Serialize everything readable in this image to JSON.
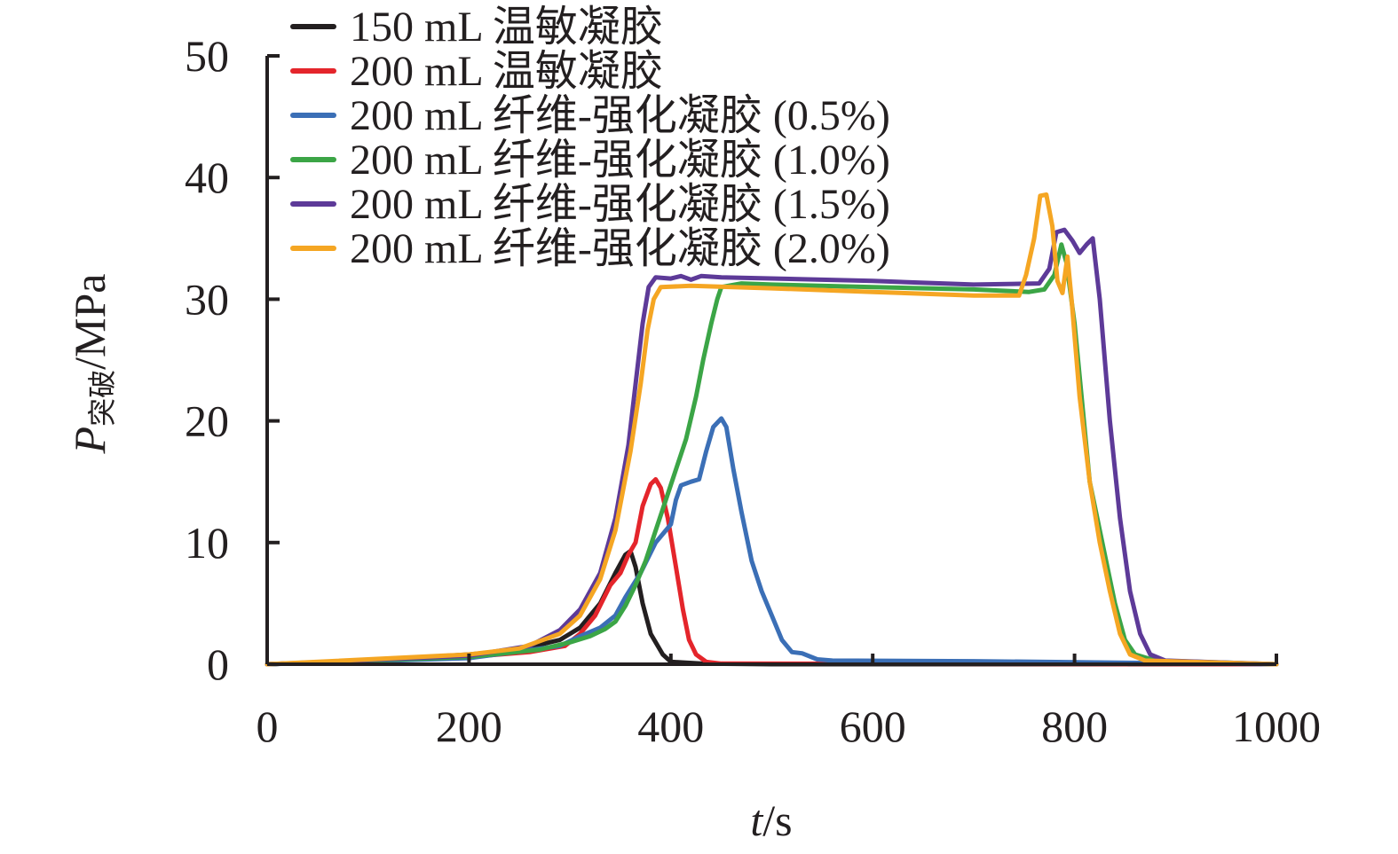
{
  "chart_data": {
    "type": "line",
    "xlabel": {
      "symbol": "t",
      "unit": "/s"
    },
    "ylabel": {
      "symbol": "P",
      "subscript": "突破",
      "unit": "/MPa"
    },
    "xlim": [
      0,
      1000
    ],
    "ylim": [
      0,
      50
    ],
    "x_ticks": [
      0,
      200,
      400,
      600,
      800,
      1000
    ],
    "y_ticks": [
      0,
      10,
      20,
      30,
      40,
      50
    ],
    "grid": false,
    "legend_position": "top-left",
    "series": [
      {
        "name": "150 mL 温敏凝胶",
        "color": "#231f20",
        "points": [
          [
            0,
            0
          ],
          [
            100,
            0.3
          ],
          [
            200,
            0.8
          ],
          [
            250,
            1.2
          ],
          [
            290,
            2.0
          ],
          [
            310,
            3.0
          ],
          [
            330,
            5.0
          ],
          [
            345,
            7.5
          ],
          [
            355,
            9.0
          ],
          [
            360,
            9.3
          ],
          [
            365,
            8.0
          ],
          [
            372,
            5.0
          ],
          [
            380,
            2.5
          ],
          [
            392,
            0.8
          ],
          [
            400,
            0.2
          ],
          [
            430,
            0.05
          ],
          [
            500,
            0
          ],
          [
            1000,
            0
          ]
        ]
      },
      {
        "name": "200 mL 温敏凝胶",
        "color": "#e4252b",
        "points": [
          [
            0,
            0
          ],
          [
            100,
            0.3
          ],
          [
            200,
            0.6
          ],
          [
            260,
            1.0
          ],
          [
            295,
            1.5
          ],
          [
            310,
            2.5
          ],
          [
            325,
            4.0
          ],
          [
            340,
            6.5
          ],
          [
            350,
            7.5
          ],
          [
            358,
            9.0
          ],
          [
            365,
            10.0
          ],
          [
            372,
            13.0
          ],
          [
            380,
            14.8
          ],
          [
            385,
            15.2
          ],
          [
            390,
            14.5
          ],
          [
            397,
            12.0
          ],
          [
            405,
            8.0
          ],
          [
            412,
            4.5
          ],
          [
            418,
            2.0
          ],
          [
            425,
            0.8
          ],
          [
            435,
            0.2
          ],
          [
            450,
            0.05
          ],
          [
            1000,
            0
          ]
        ]
      },
      {
        "name": "200 mL 纤维-强化凝胶 (0.5%)",
        "color": "#3b6fb6",
        "points": [
          [
            0,
            0
          ],
          [
            200,
            0.5
          ],
          [
            290,
            1.5
          ],
          [
            310,
            2.3
          ],
          [
            330,
            3.0
          ],
          [
            345,
            4.0
          ],
          [
            355,
            5.5
          ],
          [
            370,
            7.5
          ],
          [
            385,
            10.0
          ],
          [
            395,
            11.0
          ],
          [
            400,
            11.5
          ],
          [
            405,
            13.5
          ],
          [
            410,
            14.7
          ],
          [
            420,
            15.0
          ],
          [
            428,
            15.2
          ],
          [
            435,
            17.5
          ],
          [
            442,
            19.5
          ],
          [
            450,
            20.2
          ],
          [
            455,
            19.5
          ],
          [
            462,
            16.0
          ],
          [
            470,
            12.5
          ],
          [
            480,
            8.5
          ],
          [
            490,
            6.0
          ],
          [
            500,
            4.0
          ],
          [
            510,
            2.0
          ],
          [
            520,
            1.0
          ],
          [
            530,
            0.9
          ],
          [
            545,
            0.4
          ],
          [
            560,
            0.3
          ],
          [
            700,
            0.25
          ],
          [
            1000,
            0
          ]
        ]
      },
      {
        "name": "200 mL 纤维-强化凝胶 (1.0%)",
        "color": "#3ba546",
        "points": [
          [
            0,
            0
          ],
          [
            200,
            0.6
          ],
          [
            270,
            1.2
          ],
          [
            300,
            1.8
          ],
          [
            320,
            2.3
          ],
          [
            335,
            2.9
          ],
          [
            345,
            3.5
          ],
          [
            355,
            4.8
          ],
          [
            365,
            6.5
          ],
          [
            375,
            8.5
          ],
          [
            385,
            11.0
          ],
          [
            395,
            13.5
          ],
          [
            405,
            16.0
          ],
          [
            415,
            18.5
          ],
          [
            425,
            22.0
          ],
          [
            432,
            25.0
          ],
          [
            440,
            28.0
          ],
          [
            446,
            30.0
          ],
          [
            450,
            31.0
          ],
          [
            470,
            31.3
          ],
          [
            500,
            31.2
          ],
          [
            600,
            31.0
          ],
          [
            700,
            30.8
          ],
          [
            755,
            30.6
          ],
          [
            770,
            30.8
          ],
          [
            780,
            32.0
          ],
          [
            787,
            34.5
          ],
          [
            792,
            33.0
          ],
          [
            800,
            28.0
          ],
          [
            815,
            15.0
          ],
          [
            830,
            9.0
          ],
          [
            840,
            5.0
          ],
          [
            850,
            2.0
          ],
          [
            860,
            0.8
          ],
          [
            880,
            0.3
          ],
          [
            1000,
            0
          ]
        ]
      },
      {
        "name": "200 mL 纤维-强化凝胶 (1.5%)",
        "color": "#5d3a98",
        "points": [
          [
            0,
            0
          ],
          [
            200,
            0.7
          ],
          [
            260,
            1.5
          ],
          [
            290,
            2.8
          ],
          [
            310,
            4.5
          ],
          [
            330,
            7.5
          ],
          [
            345,
            12.0
          ],
          [
            358,
            18.0
          ],
          [
            365,
            23.0
          ],
          [
            372,
            28.0
          ],
          [
            378,
            31.0
          ],
          [
            385,
            31.8
          ],
          [
            400,
            31.7
          ],
          [
            410,
            31.9
          ],
          [
            420,
            31.6
          ],
          [
            430,
            31.9
          ],
          [
            450,
            31.8
          ],
          [
            600,
            31.5
          ],
          [
            700,
            31.2
          ],
          [
            765,
            31.3
          ],
          [
            775,
            32.5
          ],
          [
            782,
            35.5
          ],
          [
            790,
            35.7
          ],
          [
            798,
            34.8
          ],
          [
            805,
            33.8
          ],
          [
            812,
            34.5
          ],
          [
            818,
            35.0
          ],
          [
            825,
            30.0
          ],
          [
            835,
            20.0
          ],
          [
            845,
            12.0
          ],
          [
            855,
            6.0
          ],
          [
            865,
            2.5
          ],
          [
            875,
            0.8
          ],
          [
            890,
            0.3
          ],
          [
            1000,
            0
          ]
        ]
      },
      {
        "name": "200 mL 纤维-强化凝胶 (2.0%)",
        "color": "#f5a623",
        "points": [
          [
            0,
            0
          ],
          [
            200,
            0.8
          ],
          [
            250,
            1.3
          ],
          [
            290,
            2.5
          ],
          [
            310,
            4.0
          ],
          [
            330,
            7.0
          ],
          [
            345,
            11.0
          ],
          [
            360,
            17.5
          ],
          [
            370,
            23.0
          ],
          [
            377,
            27.5
          ],
          [
            383,
            30.0
          ],
          [
            390,
            31.0
          ],
          [
            420,
            31.1
          ],
          [
            500,
            30.9
          ],
          [
            600,
            30.6
          ],
          [
            700,
            30.3
          ],
          [
            745,
            30.3
          ],
          [
            752,
            32.0
          ],
          [
            760,
            35.0
          ],
          [
            766,
            38.5
          ],
          [
            772,
            38.6
          ],
          [
            778,
            36.0
          ],
          [
            783,
            31.5
          ],
          [
            788,
            30.5
          ],
          [
            793,
            33.5
          ],
          [
            797,
            30.0
          ],
          [
            805,
            22.0
          ],
          [
            815,
            15.0
          ],
          [
            825,
            10.0
          ],
          [
            835,
            6.0
          ],
          [
            845,
            2.5
          ],
          [
            855,
            0.8
          ],
          [
            870,
            0.3
          ],
          [
            1000,
            0
          ]
        ]
      }
    ]
  }
}
